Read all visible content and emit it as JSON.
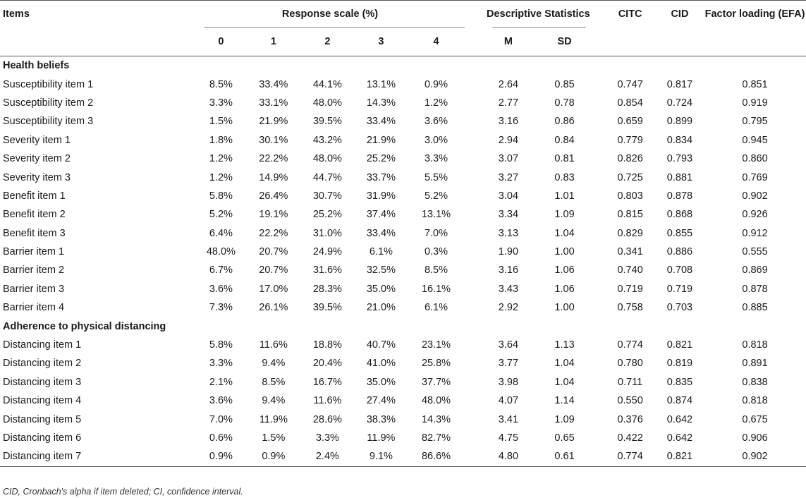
{
  "headers": {
    "items": "Items",
    "response_scale": "Response scale (%)",
    "descriptive_statistics": "Descriptive Statistics",
    "citc": "CITC",
    "cid": "CID",
    "factor_loading": "Factor loading (EFA)",
    "scale_0": "0",
    "scale_1": "1",
    "scale_2": "2",
    "scale_3": "3",
    "scale_4": "4",
    "m": "M",
    "sd": "SD"
  },
  "sections": [
    {
      "title": "Health beliefs",
      "rows": [
        {
          "item": "Susceptibility item 1",
          "r0": "8.5%",
          "r1": "33.4%",
          "r2": "44.1%",
          "r3": "13.1%",
          "r4": "0.9%",
          "m": "2.64",
          "sd": "0.85",
          "citc": "0.747",
          "cid": "0.817",
          "fl": "0.851"
        },
        {
          "item": "Susceptibility item 2",
          "r0": "3.3%",
          "r1": "33.1%",
          "r2": "48.0%",
          "r3": "14.3%",
          "r4": "1.2%",
          "m": "2.77",
          "sd": "0.78",
          "citc": "0.854",
          "cid": "0.724",
          "fl": "0.919"
        },
        {
          "item": "Susceptibility item 3",
          "r0": "1.5%",
          "r1": "21.9%",
          "r2": "39.5%",
          "r3": "33.4%",
          "r4": "3.6%",
          "m": "3.16",
          "sd": "0.86",
          "citc": "0.659",
          "cid": "0.899",
          "fl": "0.795"
        },
        {
          "item": "Severity item 1",
          "r0": "1.8%",
          "r1": "30.1%",
          "r2": "43.2%",
          "r3": "21.9%",
          "r4": "3.0%",
          "m": "2.94",
          "sd": "0.84",
          "citc": "0.779",
          "cid": "0.834",
          "fl": "0.945"
        },
        {
          "item": "Severity item 2",
          "r0": "1.2%",
          "r1": "22.2%",
          "r2": "48.0%",
          "r3": "25.2%",
          "r4": "3.3%",
          "m": "3.07",
          "sd": "0.81",
          "citc": "0.826",
          "cid": "0.793",
          "fl": "0.860"
        },
        {
          "item": "Severity item 3",
          "r0": "1.2%",
          "r1": "14.9%",
          "r2": "44.7%",
          "r3": "33.7%",
          "r4": "5.5%",
          "m": "3.27",
          "sd": "0.83",
          "citc": "0.725",
          "cid": "0.881",
          "fl": "0.769"
        },
        {
          "item": "Benefit item 1",
          "r0": "5.8%",
          "r1": "26.4%",
          "r2": "30.7%",
          "r3": "31.9%",
          "r4": "5.2%",
          "m": "3.04",
          "sd": "1.01",
          "citc": "0.803",
          "cid": "0.878",
          "fl": "0.902"
        },
        {
          "item": "Benefit item 2",
          "r0": "5.2%",
          "r1": "19.1%",
          "r2": "25.2%",
          "r3": "37.4%",
          "r4": "13.1%",
          "m": "3.34",
          "sd": "1.09",
          "citc": "0.815",
          "cid": "0.868",
          "fl": "0.926"
        },
        {
          "item": "Benefit item 3",
          "r0": "6.4%",
          "r1": "22.2%",
          "r2": "31.0%",
          "r3": "33.4%",
          "r4": "7.0%",
          "m": "3.13",
          "sd": "1.04",
          "citc": "0.829",
          "cid": "0.855",
          "fl": "0.912"
        },
        {
          "item": "Barrier item 1",
          "r0": "48.0%",
          "r1": "20.7%",
          "r2": "24.9%",
          "r3": "6.1%",
          "r4": "0.3%",
          "m": "1.90",
          "sd": "1.00",
          "citc": "0.341",
          "cid": "0.886",
          "fl": "0.555"
        },
        {
          "item": "Barrier item 2",
          "r0": "6.7%",
          "r1": "20.7%",
          "r2": "31.6%",
          "r3": "32.5%",
          "r4": "8.5%",
          "m": "3.16",
          "sd": "1.06",
          "citc": "0.740",
          "cid": "0.708",
          "fl": "0.869"
        },
        {
          "item": "Barrier item 3",
          "r0": "3.6%",
          "r1": "17.0%",
          "r2": "28.3%",
          "r3": "35.0%",
          "r4": "16.1%",
          "m": "3.43",
          "sd": "1.06",
          "citc": "0.719",
          "cid": "0.719",
          "fl": "0.878"
        },
        {
          "item": "Barrier item 4",
          "r0": "7.3%",
          "r1": "26.1%",
          "r2": "39.5%",
          "r3": "21.0%",
          "r4": "6.1%",
          "m": "2.92",
          "sd": "1.00",
          "citc": "0.758",
          "cid": "0.703",
          "fl": "0.885"
        }
      ]
    },
    {
      "title": "Adherence to physical distancing",
      "rows": [
        {
          "item": "Distancing item 1",
          "r0": "5.8%",
          "r1": "11.6%",
          "r2": "18.8%",
          "r3": "40.7%",
          "r4": "23.1%",
          "m": "3.64",
          "sd": "1.13",
          "citc": "0.774",
          "cid": "0.821",
          "fl": "0.818"
        },
        {
          "item": "Distancing item 2",
          "r0": "3.3%",
          "r1": "9.4%",
          "r2": "20.4%",
          "r3": "41.0%",
          "r4": "25.8%",
          "m": "3.77",
          "sd": "1.04",
          "citc": "0.780",
          "cid": "0.819",
          "fl": "0.891"
        },
        {
          "item": "Distancing item 3",
          "r0": "2.1%",
          "r1": "8.5%",
          "r2": "16.7%",
          "r3": "35.0%",
          "r4": "37.7%",
          "m": "3.98",
          "sd": "1.04",
          "citc": "0.711",
          "cid": "0.835",
          "fl": "0.838"
        },
        {
          "item": "Distancing item 4",
          "r0": "3.6%",
          "r1": "9.4%",
          "r2": "11.6%",
          "r3": "27.4%",
          "r4": "48.0%",
          "m": "4.07",
          "sd": "1.14",
          "citc": "0.550",
          "cid": "0.874",
          "fl": "0.818"
        },
        {
          "item": "Distancing item 5",
          "r0": "7.0%",
          "r1": "11.9%",
          "r2": "28.6%",
          "r3": "38.3%",
          "r4": "14.3%",
          "m": "3.41",
          "sd": "1.09",
          "citc": "0.376",
          "cid": "0.642",
          "fl": "0.675"
        },
        {
          "item": "Distancing item 6",
          "r0": "0.6%",
          "r1": "1.5%",
          "r2": "3.3%",
          "r3": "11.9%",
          "r4": "82.7%",
          "m": "4.75",
          "sd": "0.65",
          "citc": "0.422",
          "cid": "0.642",
          "fl": "0.906"
        },
        {
          "item": "Distancing item 7",
          "r0": "0.9%",
          "r1": "0.9%",
          "r2": "2.4%",
          "r3": "9.1%",
          "r4": "86.6%",
          "m": "4.80",
          "sd": "0.61",
          "citc": "0.774",
          "cid": "0.821",
          "fl": "0.902"
        }
      ]
    }
  ],
  "footnote": "CID, Cronbach's alpha if item deleted; CI, confidence interval."
}
